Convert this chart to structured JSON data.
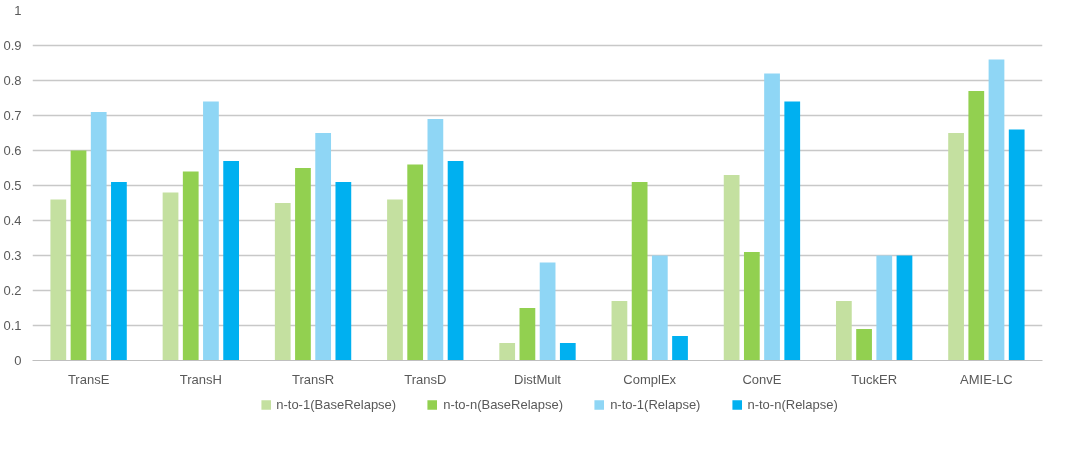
{
  "chart_data": {
    "type": "bar",
    "categories": [
      "TransE",
      "TransH",
      "TransR",
      "TransD",
      "DistMult",
      "ComplEx",
      "ConvE",
      "TuckER",
      "AMIE-LC"
    ],
    "series": [
      {
        "name": "n-to-1(BaseRelapse)",
        "color": "#c4e0a0",
        "values": [
          0.46,
          0.48,
          0.45,
          0.46,
          0.05,
          0.17,
          0.53,
          0.17,
          0.65
        ]
      },
      {
        "name": "n-to-n(BaseRelapse)",
        "color": "#92d050",
        "values": [
          0.6,
          0.54,
          0.55,
          0.56,
          0.15,
          0.51,
          0.31,
          0.09,
          0.77
        ]
      },
      {
        "name": "n-to-1(Relapse)",
        "color": "#8fd6f5",
        "values": [
          0.71,
          0.74,
          0.65,
          0.69,
          0.28,
          0.3,
          0.82,
          0.3,
          0.86
        ]
      },
      {
        "name": "n-to-n(Relapse)",
        "color": "#00b0f0",
        "values": [
          0.51,
          0.57,
          0.51,
          0.57,
          0.05,
          0.07,
          0.74,
          0.3,
          0.66
        ]
      }
    ],
    "ylim": [
      0,
      1
    ],
    "yticks": [
      0,
      0.1,
      0.2,
      0.3,
      0.4,
      0.5,
      0.6,
      0.7,
      0.8,
      0.9,
      1
    ],
    "grid": "y",
    "legend": "bottom"
  }
}
